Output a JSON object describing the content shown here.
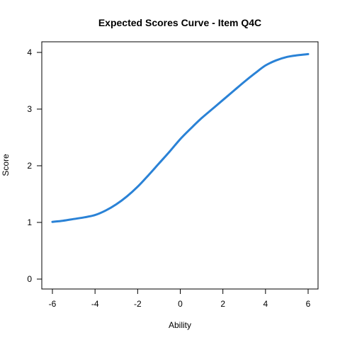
{
  "chart_data": {
    "type": "line",
    "title": "Expected Scores Curve - Item  Q4C",
    "xlabel": "Ability",
    "ylabel": "Score",
    "xlim": [
      -6,
      6
    ],
    "ylim": [
      0,
      4
    ],
    "x_ticks": [
      -6,
      -4,
      -2,
      0,
      2,
      4,
      6
    ],
    "y_ticks": [
      0,
      1,
      2,
      3,
      4
    ],
    "grid": false,
    "series": [
      {
        "color": "#2a82d6",
        "x": [
          -6,
          -5.5,
          -5,
          -4.5,
          -4,
          -3.5,
          -3,
          -2.5,
          -2,
          -1.5,
          -1,
          -0.5,
          0,
          0.5,
          1,
          1.5,
          2,
          2.5,
          3,
          3.5,
          4,
          4.5,
          5,
          5.5,
          6
        ],
        "y": [
          1.01,
          1.03,
          1.06,
          1.09,
          1.13,
          1.21,
          1.32,
          1.46,
          1.63,
          1.83,
          2.04,
          2.25,
          2.47,
          2.66,
          2.84,
          3.0,
          3.16,
          3.32,
          3.48,
          3.63,
          3.77,
          3.86,
          3.92,
          3.95,
          3.97
        ]
      }
    ]
  }
}
